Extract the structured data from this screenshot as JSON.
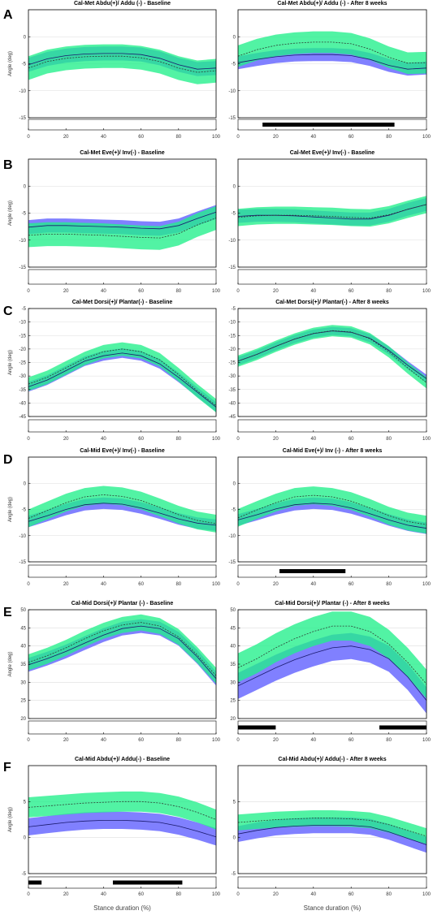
{
  "colors": {
    "baseline_band": "#8080ff",
    "after_band": "#21f08a",
    "overlap": "#2aa588",
    "frame": "#000000",
    "grid": "#dddddd",
    "significance_bar": "#000000"
  },
  "figure": {
    "xlabel": "Stance duration (%)"
  },
  "chart_data": [
    {
      "type": "line",
      "panel": "A",
      "title": "Cal-Met Abdu(+)/ Addu (-) - Baseline",
      "ylabel": "Angle (deg)",
      "ylim": [
        -15,
        5
      ],
      "yticks": [
        -15,
        -10,
        -5,
        0
      ],
      "xlim": [
        0,
        100
      ],
      "xticks": [
        0,
        20,
        40,
        60,
        80,
        100
      ],
      "x": [
        0,
        10,
        20,
        30,
        40,
        50,
        60,
        70,
        80,
        90,
        100
      ],
      "series": [
        {
          "role": "purple",
          "mean": [
            -5.2,
            -4.1,
            -3.5,
            -3.2,
            -3.1,
            -3.1,
            -3.3,
            -4,
            -5.2,
            -6,
            -5.8
          ],
          "sd": 1.3
        },
        {
          "role": "green",
          "mean": [
            -5.8,
            -4.6,
            -4,
            -3.7,
            -3.6,
            -3.6,
            -3.9,
            -4.6,
            -5.8,
            -6.6,
            -6.3
          ],
          "sd": 2.2
        }
      ],
      "significance": []
    },
    {
      "type": "line",
      "panel": "A",
      "title": "Cal-Met Abdu(+)/ Addu (-) - After 8 weeks",
      "ylabel": "",
      "ylim": [
        -15,
        5
      ],
      "yticks": [
        -15,
        -10,
        -5,
        0
      ],
      "xlim": [
        0,
        100
      ],
      "xticks": [
        0,
        20,
        40,
        60,
        80,
        100
      ],
      "x": [
        0,
        10,
        20,
        30,
        40,
        50,
        60,
        70,
        80,
        90,
        100
      ],
      "series": [
        {
          "role": "purple",
          "mean": [
            -4.8,
            -4.2,
            -3.7,
            -3.4,
            -3.3,
            -3.3,
            -3.5,
            -4.2,
            -5.3,
            -6,
            -5.8
          ],
          "sd": 1.2
        },
        {
          "role": "green",
          "mean": [
            -3.6,
            -2.4,
            -1.6,
            -1.2,
            -1,
            -1,
            -1.3,
            -2.3,
            -3.8,
            -4.9,
            -4.8
          ],
          "sd": 2.0
        }
      ],
      "significance": [
        [
          13,
          83
        ]
      ]
    },
    {
      "type": "line",
      "panel": "B",
      "title": "Cal-Met Eve(+)/ Inv(-) - Baseline",
      "ylabel": "Angle (deg)",
      "ylim": [
        -15,
        5
      ],
      "yticks": [
        -15,
        -10,
        -5,
        0
      ],
      "xlim": [
        0,
        100
      ],
      "xticks": [
        0,
        20,
        40,
        60,
        80,
        100
      ],
      "x": [
        0,
        10,
        20,
        30,
        40,
        50,
        60,
        70,
        80,
        90,
        100
      ],
      "series": [
        {
          "role": "purple",
          "mean": [
            -7.6,
            -7.3,
            -7.3,
            -7.4,
            -7.5,
            -7.6,
            -7.8,
            -7.9,
            -7.3,
            -6,
            -4.8
          ],
          "sd": 1.3
        },
        {
          "role": "green",
          "mean": [
            -9.1,
            -8.9,
            -8.9,
            -9,
            -9.1,
            -9.3,
            -9.5,
            -9.6,
            -8.8,
            -7.2,
            -5.9
          ],
          "sd": 2.2
        }
      ],
      "significance": []
    },
    {
      "type": "line",
      "panel": "B",
      "title": "Cal-Met Eve(+)/ Inv(-) - Baseline",
      "ylabel": "",
      "ylim": [
        -15,
        5
      ],
      "yticks": [
        -15,
        -10,
        -5,
        0
      ],
      "xlim": [
        0,
        100
      ],
      "xticks": [
        0,
        20,
        40,
        60,
        80,
        100
      ],
      "x": [
        0,
        10,
        20,
        30,
        40,
        50,
        60,
        70,
        80,
        90,
        100
      ],
      "series": [
        {
          "role": "purple",
          "mean": [
            -5.6,
            -5.4,
            -5.4,
            -5.5,
            -5.7,
            -5.9,
            -6.1,
            -6.1,
            -5.4,
            -4.3,
            -3.4
          ],
          "sd": 1.2
        },
        {
          "role": "green",
          "mean": [
            -5.8,
            -5.5,
            -5.4,
            -5.4,
            -5.5,
            -5.6,
            -5.8,
            -5.9,
            -5.3,
            -4.3,
            -3.4
          ],
          "sd": 1.6
        }
      ],
      "significance": []
    },
    {
      "type": "line",
      "panel": "C",
      "title": "Cal-Met Dorsi(+)/ Plantar(-) - Baseline",
      "ylabel": "Angle (deg)",
      "ylim": [
        -45,
        -5
      ],
      "yticks": [
        -45,
        -40,
        -35,
        -30,
        -25,
        -20,
        -15,
        -10,
        -5
      ],
      "xlim": [
        0,
        100
      ],
      "xticks": [
        0,
        20,
        40,
        60,
        80,
        100
      ],
      "x": [
        0,
        10,
        20,
        30,
        40,
        50,
        60,
        70,
        80,
        90,
        100
      ],
      "series": [
        {
          "role": "purple",
          "mean": [
            -34,
            -31.5,
            -28,
            -24.5,
            -22.5,
            -21.5,
            -22.5,
            -25.5,
            -30.5,
            -36,
            -41.5
          ],
          "sd": 1.8
        },
        {
          "role": "green",
          "mean": [
            -33,
            -30.5,
            -27,
            -23.5,
            -21,
            -20,
            -21,
            -24,
            -29.5,
            -35.5,
            -41
          ],
          "sd": 2.5
        }
      ],
      "significance": []
    },
    {
      "type": "line",
      "panel": "C",
      "title": "Cal-Met Dorsi(+)/ Plantar(-) - After 8 weeks",
      "ylabel": "",
      "ylim": [
        -45,
        -5
      ],
      "yticks": [
        -45,
        -40,
        -35,
        -30,
        -25,
        -20,
        -15,
        -10,
        -5
      ],
      "xlim": [
        0,
        100
      ],
      "xticks": [
        0,
        20,
        40,
        60,
        80,
        100
      ],
      "x": [
        0,
        10,
        20,
        30,
        40,
        50,
        60,
        70,
        80,
        90,
        100
      ],
      "series": [
        {
          "role": "purple",
          "mean": [
            -24.5,
            -22,
            -19,
            -16.3,
            -14.3,
            -13.3,
            -13.8,
            -16,
            -20.5,
            -26,
            -31
          ],
          "sd": 1.5
        },
        {
          "role": "green",
          "mean": [
            -24.5,
            -22,
            -19,
            -16.3,
            -14.2,
            -13.2,
            -13.7,
            -16.2,
            -21,
            -27,
            -32.5
          ],
          "sd": 2.1
        }
      ],
      "significance": []
    },
    {
      "type": "line",
      "panel": "D",
      "title": "Cal-Mid Eve(+)/ Inv(-) - Baseline",
      "ylabel": "Angle (deg)",
      "ylim": [
        -15,
        5
      ],
      "yticks": [
        -15,
        -10,
        -5,
        0
      ],
      "xlim": [
        0,
        100
      ],
      "xticks": [
        0,
        20,
        40,
        60,
        80,
        100
      ],
      "x": [
        0,
        10,
        20,
        30,
        40,
        50,
        60,
        70,
        80,
        90,
        100
      ],
      "series": [
        {
          "role": "purple",
          "mean": [
            -7.3,
            -6.2,
            -5,
            -4.1,
            -3.8,
            -4,
            -4.7,
            -5.7,
            -6.8,
            -7.6,
            -8
          ],
          "sd": 1.1
        },
        {
          "role": "green",
          "mean": [
            -6.7,
            -5.2,
            -3.7,
            -2.6,
            -2.2,
            -2.5,
            -3.3,
            -4.6,
            -6,
            -7.1,
            -7.7
          ],
          "sd": 1.7
        }
      ],
      "significance": []
    },
    {
      "type": "line",
      "panel": "D",
      "title": "Cal-Mid Eve(+)/ Inv (-) - After 8 weeks",
      "ylabel": "",
      "ylim": [
        -15,
        5
      ],
      "yticks": [
        -15,
        -10,
        -5,
        0
      ],
      "xlim": [
        0,
        100
      ],
      "xticks": [
        0,
        20,
        40,
        60,
        80,
        100
      ],
      "x": [
        0,
        10,
        20,
        30,
        40,
        50,
        60,
        70,
        80,
        90,
        100
      ],
      "series": [
        {
          "role": "purple",
          "mean": [
            -7,
            -6,
            -4.9,
            -4.1,
            -3.8,
            -4,
            -4.7,
            -5.8,
            -7,
            -8,
            -8.6
          ],
          "sd": 1.1
        },
        {
          "role": "green",
          "mean": [
            -6.6,
            -5.1,
            -3.7,
            -2.6,
            -2.3,
            -2.6,
            -3.4,
            -4.7,
            -6.2,
            -7.3,
            -7.9
          ],
          "sd": 1.7
        }
      ],
      "significance": [
        [
          22,
          57
        ]
      ]
    },
    {
      "type": "line",
      "panel": "E",
      "title": "Cal-Mid Dorsi(+)/ Plantar (-) - Baseline",
      "ylabel": "Angle (deg)",
      "ylim": [
        20,
        50
      ],
      "yticks": [
        20,
        25,
        30,
        35,
        40,
        45,
        50
      ],
      "xlim": [
        0,
        100
      ],
      "xticks": [
        0,
        20,
        40,
        60,
        80,
        100
      ],
      "x": [
        0,
        10,
        20,
        30,
        40,
        50,
        60,
        70,
        80,
        90,
        100
      ],
      "series": [
        {
          "role": "purple",
          "mean": [
            34.8,
            36.5,
            38.5,
            40.8,
            43,
            44.8,
            45.5,
            44.8,
            42,
            37,
            31
          ],
          "sd": 1.9
        },
        {
          "role": "green",
          "mean": [
            35.5,
            37.3,
            39.5,
            42,
            44.2,
            45.8,
            46.5,
            45.5,
            42.5,
            37.5,
            31.8
          ],
          "sd": 2.2
        }
      ],
      "significance": []
    },
    {
      "type": "line",
      "panel": "E",
      "title": "Cal-Mid Dorsi(+)/ Plantar (-) - After 8 weeks",
      "ylabel": "",
      "ylim": [
        20,
        50
      ],
      "yticks": [
        20,
        25,
        30,
        35,
        40,
        45,
        50
      ],
      "xlim": [
        0,
        100
      ],
      "xticks": [
        0,
        20,
        40,
        60,
        80,
        100
      ],
      "x": [
        0,
        10,
        20,
        30,
        40,
        50,
        60,
        70,
        80,
        90,
        100
      ],
      "series": [
        {
          "role": "purple",
          "mean": [
            29,
            31.5,
            34,
            36.2,
            38,
            39.5,
            40,
            39,
            36.5,
            31.5,
            25
          ],
          "sd": 3.6
        },
        {
          "role": "green",
          "mean": [
            34,
            36.5,
            39.5,
            42,
            44,
            45.5,
            45.5,
            44,
            40.5,
            35.5,
            29.5
          ],
          "sd": 4.0
        }
      ],
      "significance": [
        [
          0,
          20
        ],
        [
          75,
          100
        ]
      ]
    },
    {
      "type": "line",
      "panel": "F",
      "title": "Cal-Mid Abdu(+)/ Addu(-) - Baseline",
      "ylabel": "Angle (deg)",
      "ylim": [
        -5,
        10
      ],
      "yticks": [
        -5,
        0,
        5
      ],
      "xlim": [
        0,
        100
      ],
      "xticks": [
        0,
        20,
        40,
        60,
        80,
        100
      ],
      "x": [
        0,
        10,
        20,
        30,
        40,
        50,
        60,
        70,
        80,
        90,
        100
      ],
      "series": [
        {
          "role": "purple",
          "mean": [
            1.5,
            1.8,
            2.1,
            2.3,
            2.4,
            2.4,
            2.3,
            2.1,
            1.6,
            0.9,
            0.1
          ],
          "sd": 1.2
        },
        {
          "role": "green",
          "mean": [
            4.2,
            4.4,
            4.6,
            4.8,
            4.9,
            5,
            5,
            4.8,
            4.3,
            3.5,
            2.5
          ],
          "sd": 1.4
        }
      ],
      "significance": [
        [
          0,
          7
        ],
        [
          45,
          82
        ]
      ]
    },
    {
      "type": "line",
      "panel": "F",
      "title": "Cal-Mid Abdu(+)/ Addu(-) - After 8 weeks",
      "ylabel": "",
      "ylim": [
        -5,
        10
      ],
      "yticks": [
        -5,
        0,
        5
      ],
      "xlim": [
        0,
        100
      ],
      "xticks": [
        0,
        20,
        40,
        60,
        80,
        100
      ],
      "x": [
        0,
        10,
        20,
        30,
        40,
        50,
        60,
        70,
        80,
        90,
        100
      ],
      "series": [
        {
          "role": "purple",
          "mean": [
            0.5,
            1,
            1.4,
            1.6,
            1.7,
            1.7,
            1.7,
            1.5,
            0.8,
            -0.1,
            -1
          ],
          "sd": 1.1
        },
        {
          "role": "green",
          "mean": [
            2.1,
            2.3,
            2.5,
            2.6,
            2.7,
            2.7,
            2.6,
            2.4,
            1.8,
            1,
            0.2
          ],
          "sd": 1.1
        }
      ],
      "significance": []
    }
  ]
}
